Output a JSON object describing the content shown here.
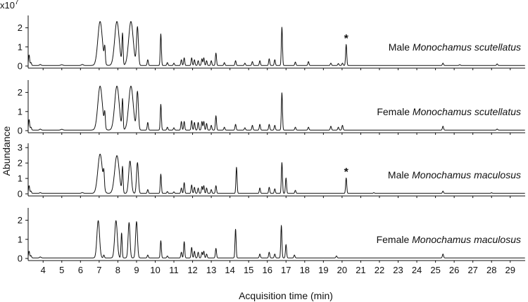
{
  "figure": {
    "multiplier_base": "x10",
    "multiplier_exp": "7",
    "ylabel": "Abundance",
    "xlabel": "Acquisition time (min)",
    "x_ticks": [
      "4",
      "5",
      "6",
      "7",
      "8",
      "9",
      "10",
      "11",
      "12",
      "13",
      "14",
      "15",
      "16",
      "17",
      "18",
      "19",
      "20",
      "21",
      "22",
      "23",
      "24",
      "25",
      "26",
      "27",
      "28",
      "29"
    ],
    "star_symbol": "*"
  },
  "chart_data": [
    {
      "type": "line",
      "title": "",
      "label_prefix": "Male ",
      "label_species": "Monochamus scutellatus",
      "xlim": [
        3.2,
        29.8
      ],
      "ylim": [
        0,
        2.5
      ],
      "y_ticks": [
        "0",
        "1",
        "2"
      ],
      "y_tick_values": [
        0,
        1,
        2
      ],
      "peaks": [
        [
          3.25,
          0.55,
          0.03
        ],
        [
          3.35,
          0.15,
          0.03
        ],
        [
          3.85,
          0.05,
          0.04
        ],
        [
          5.0,
          0.04,
          0.05
        ],
        [
          6.1,
          0.05,
          0.05
        ],
        [
          7.05,
          2.3,
          0.12
        ],
        [
          7.3,
          0.8,
          0.03
        ],
        [
          7.95,
          2.3,
          0.12
        ],
        [
          8.25,
          1.6,
          0.03
        ],
        [
          8.7,
          2.3,
          0.12
        ],
        [
          9.05,
          2.0,
          0.05
        ],
        [
          9.6,
          0.3,
          0.03
        ],
        [
          10.3,
          1.65,
          0.03
        ],
        [
          10.65,
          0.15,
          0.03
        ],
        [
          11.0,
          0.12,
          0.03
        ],
        [
          11.4,
          0.3,
          0.03
        ],
        [
          11.55,
          0.4,
          0.03
        ],
        [
          11.95,
          0.4,
          0.03
        ],
        [
          12.1,
          0.3,
          0.03
        ],
        [
          12.3,
          0.25,
          0.03
        ],
        [
          12.5,
          0.35,
          0.03
        ],
        [
          12.6,
          0.4,
          0.03
        ],
        [
          12.75,
          0.25,
          0.03
        ],
        [
          13.0,
          0.25,
          0.03
        ],
        [
          13.25,
          0.65,
          0.03
        ],
        [
          13.7,
          0.15,
          0.03
        ],
        [
          14.3,
          0.25,
          0.03
        ],
        [
          14.8,
          0.12,
          0.03
        ],
        [
          15.2,
          0.2,
          0.03
        ],
        [
          15.6,
          0.25,
          0.03
        ],
        [
          16.1,
          0.35,
          0.03
        ],
        [
          16.4,
          0.3,
          0.03
        ],
        [
          16.78,
          2.0,
          0.03
        ],
        [
          17.5,
          0.18,
          0.03
        ],
        [
          18.2,
          0.2,
          0.03
        ],
        [
          19.4,
          0.12,
          0.03
        ],
        [
          19.8,
          0.1,
          0.03
        ],
        [
          20.02,
          0.12,
          0.03
        ],
        [
          20.22,
          1.1,
          0.03
        ],
        [
          25.4,
          0.12,
          0.03
        ],
        [
          26.3,
          0.04,
          0.03
        ],
        [
          28.3,
          0.08,
          0.03
        ]
      ],
      "marked_peak_x": 20.22
    },
    {
      "type": "line",
      "title": "",
      "label_prefix": "Female ",
      "label_species": "Monochamus scutellatus",
      "xlim": [
        3.2,
        29.8
      ],
      "ylim": [
        0,
        2.5
      ],
      "y_ticks": [
        "0",
        "1",
        "2"
      ],
      "y_tick_values": [
        0,
        1,
        2
      ],
      "peaks": [
        [
          3.25,
          0.55,
          0.03
        ],
        [
          3.35,
          0.15,
          0.03
        ],
        [
          3.85,
          0.05,
          0.04
        ],
        [
          5.0,
          0.04,
          0.05
        ],
        [
          7.05,
          2.3,
          0.12
        ],
        [
          7.3,
          0.75,
          0.03
        ],
        [
          7.95,
          2.3,
          0.12
        ],
        [
          8.25,
          1.55,
          0.03
        ],
        [
          8.7,
          2.3,
          0.12
        ],
        [
          9.05,
          2.0,
          0.05
        ],
        [
          9.6,
          0.4,
          0.03
        ],
        [
          10.3,
          1.35,
          0.03
        ],
        [
          10.65,
          0.15,
          0.03
        ],
        [
          11.0,
          0.12,
          0.03
        ],
        [
          11.4,
          0.45,
          0.03
        ],
        [
          11.55,
          0.45,
          0.03
        ],
        [
          11.95,
          0.5,
          0.03
        ],
        [
          12.1,
          0.4,
          0.03
        ],
        [
          12.3,
          0.4,
          0.03
        ],
        [
          12.5,
          0.45,
          0.03
        ],
        [
          12.6,
          0.45,
          0.03
        ],
        [
          12.75,
          0.35,
          0.03
        ],
        [
          13.0,
          0.25,
          0.03
        ],
        [
          13.25,
          0.75,
          0.03
        ],
        [
          13.7,
          0.15,
          0.03
        ],
        [
          14.3,
          0.3,
          0.03
        ],
        [
          14.8,
          0.12,
          0.03
        ],
        [
          15.2,
          0.25,
          0.03
        ],
        [
          15.6,
          0.3,
          0.03
        ],
        [
          16.1,
          0.3,
          0.03
        ],
        [
          16.4,
          0.25,
          0.03
        ],
        [
          16.78,
          1.95,
          0.03
        ],
        [
          17.5,
          0.15,
          0.03
        ],
        [
          18.2,
          0.15,
          0.03
        ],
        [
          19.4,
          0.2,
          0.03
        ],
        [
          19.8,
          0.15,
          0.03
        ],
        [
          20.02,
          0.25,
          0.03
        ],
        [
          25.4,
          0.2,
          0.03
        ],
        [
          28.3,
          0.05,
          0.03
        ]
      ],
      "marked_peak_x": null
    },
    {
      "type": "line",
      "title": "",
      "label_prefix": "Male ",
      "label_species": "Monochamus maculosus",
      "xlim": [
        3.2,
        29.8
      ],
      "ylim": [
        0,
        3.1
      ],
      "y_ticks": [
        "0",
        "1",
        "2",
        "3"
      ],
      "y_tick_values": [
        0,
        1,
        2,
        3
      ],
      "peaks": [
        [
          3.25,
          0.5,
          0.03
        ],
        [
          3.35,
          0.15,
          0.03
        ],
        [
          3.85,
          0.05,
          0.04
        ],
        [
          6.1,
          0.05,
          0.05
        ],
        [
          7.05,
          2.55,
          0.12
        ],
        [
          7.25,
          0.95,
          0.03
        ],
        [
          7.95,
          2.45,
          0.12
        ],
        [
          8.25,
          1.65,
          0.03
        ],
        [
          8.65,
          2.1,
          0.07
        ],
        [
          9.05,
          2.0,
          0.05
        ],
        [
          9.6,
          0.25,
          0.03
        ],
        [
          10.3,
          1.25,
          0.03
        ],
        [
          10.65,
          0.12,
          0.03
        ],
        [
          11.0,
          0.1,
          0.03
        ],
        [
          11.4,
          0.35,
          0.03
        ],
        [
          11.55,
          0.7,
          0.03
        ],
        [
          11.95,
          0.55,
          0.03
        ],
        [
          12.1,
          0.4,
          0.03
        ],
        [
          12.3,
          0.35,
          0.03
        ],
        [
          12.5,
          0.45,
          0.03
        ],
        [
          12.6,
          0.5,
          0.03
        ],
        [
          12.75,
          0.35,
          0.03
        ],
        [
          13.0,
          0.25,
          0.03
        ],
        [
          13.25,
          0.5,
          0.03
        ],
        [
          14.35,
          1.7,
          0.03
        ],
        [
          15.6,
          0.35,
          0.03
        ],
        [
          16.1,
          0.4,
          0.03
        ],
        [
          16.4,
          0.3,
          0.03
        ],
        [
          16.78,
          2.0,
          0.03
        ],
        [
          17.0,
          1.0,
          0.03
        ],
        [
          17.5,
          0.2,
          0.03
        ],
        [
          20.22,
          1.0,
          0.03
        ],
        [
          21.7,
          0.05,
          0.03
        ],
        [
          25.4,
          0.15,
          0.03
        ],
        [
          28.0,
          0.04,
          0.03
        ]
      ],
      "marked_peak_x": 20.22
    },
    {
      "type": "line",
      "title": "",
      "label_prefix": "Female ",
      "label_species": "Monochamus maculosus",
      "xlim": [
        3.2,
        29.8
      ],
      "ylim": [
        0,
        2.5
      ],
      "y_ticks": [
        "0",
        "1",
        "2"
      ],
      "y_tick_values": [
        0,
        1,
        2
      ],
      "peaks": [
        [
          3.25,
          0.35,
          0.03
        ],
        [
          3.35,
          0.12,
          0.03
        ],
        [
          3.85,
          0.05,
          0.04
        ],
        [
          6.95,
          1.95,
          0.07
        ],
        [
          7.25,
          0.15,
          0.03
        ],
        [
          7.9,
          1.95,
          0.07
        ],
        [
          8.2,
          1.3,
          0.03
        ],
        [
          8.6,
          1.85,
          0.05
        ],
        [
          9.0,
          1.9,
          0.05
        ],
        [
          9.6,
          0.15,
          0.03
        ],
        [
          10.3,
          0.9,
          0.03
        ],
        [
          10.65,
          0.1,
          0.03
        ],
        [
          11.4,
          0.3,
          0.03
        ],
        [
          11.55,
          0.85,
          0.03
        ],
        [
          11.95,
          0.55,
          0.03
        ],
        [
          12.1,
          0.35,
          0.03
        ],
        [
          12.3,
          0.3,
          0.03
        ],
        [
          12.5,
          0.3,
          0.03
        ],
        [
          12.6,
          0.35,
          0.03
        ],
        [
          12.75,
          0.2,
          0.03
        ],
        [
          13.25,
          0.5,
          0.03
        ],
        [
          14.3,
          1.5,
          0.03
        ],
        [
          15.6,
          0.2,
          0.03
        ],
        [
          16.1,
          0.3,
          0.03
        ],
        [
          16.4,
          0.2,
          0.03
        ],
        [
          16.75,
          1.7,
          0.03
        ],
        [
          17.0,
          0.7,
          0.03
        ],
        [
          17.45,
          0.15,
          0.03
        ],
        [
          19.7,
          0.1,
          0.03
        ],
        [
          25.4,
          0.2,
          0.03
        ]
      ],
      "marked_peak_x": null
    }
  ],
  "colors": {
    "trace": "#111111",
    "axis": "#111111"
  }
}
